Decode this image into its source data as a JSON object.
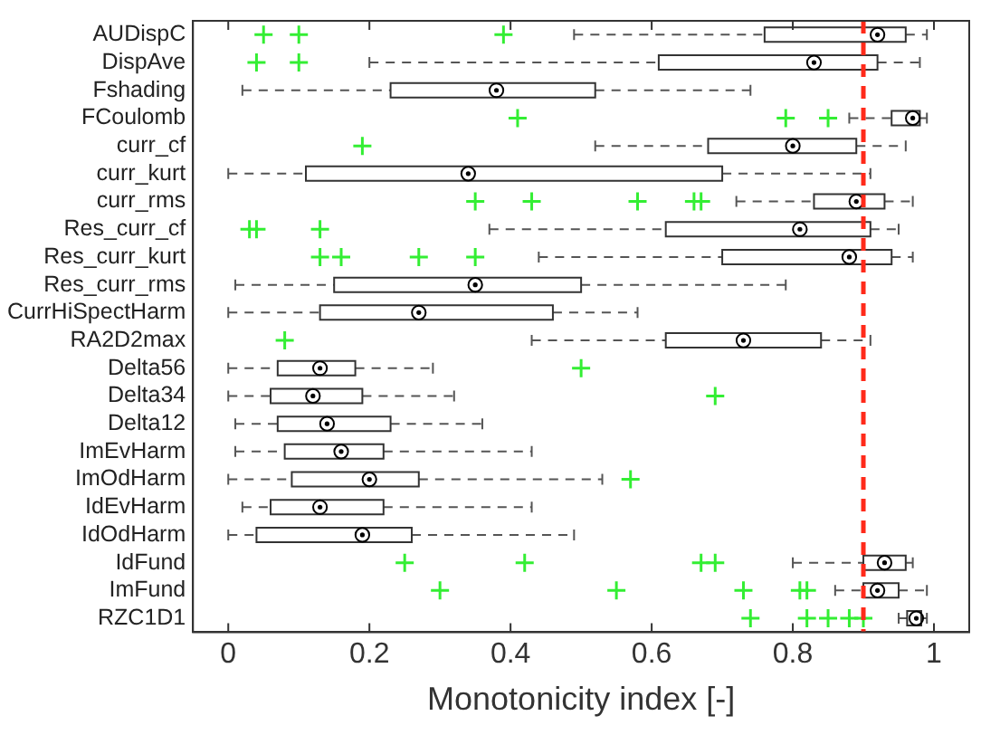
{
  "chart_data": {
    "type": "box",
    "orientation": "horizontal",
    "xlabel": "Monotonicity index [-]",
    "categories": [
      "AUDispC",
      "DispAve",
      "Fshading",
      "FCoulomb",
      "curr_cf",
      "curr_kurt",
      "curr_rms",
      "Res_curr_cf",
      "Res_curr_kurt",
      "Res_curr_rms",
      "CurrHiSpectHarm",
      "RA2D2max",
      "Delta56",
      "Delta34",
      "Delta12",
      "ImEvHarm",
      "ImOdHarm",
      "IdEvHarm",
      "IdOdHarm",
      "IdFund",
      "ImFund",
      "RZC1D1"
    ],
    "boxes": [
      {
        "low": 0.49,
        "q1": 0.76,
        "median": 0.92,
        "q3": 0.96,
        "high": 0.99,
        "outliers": [
          0.05,
          0.1,
          0.39
        ]
      },
      {
        "low": 0.2,
        "q1": 0.61,
        "median": 0.83,
        "q3": 0.92,
        "high": 0.98,
        "outliers": [
          0.04,
          0.1
        ]
      },
      {
        "low": 0.02,
        "q1": 0.23,
        "median": 0.38,
        "q3": 0.52,
        "high": 0.74
      },
      {
        "low": 0.88,
        "q1": 0.94,
        "median": 0.97,
        "q3": 0.98,
        "high": 0.99,
        "outliers": [
          0.41,
          0.79,
          0.85
        ]
      },
      {
        "low": 0.52,
        "q1": 0.68,
        "median": 0.8,
        "q3": 0.89,
        "high": 0.96,
        "outliers": [
          0.19
        ]
      },
      {
        "low": 0.0,
        "q1": 0.11,
        "median": 0.34,
        "q3": 0.7,
        "high": 0.91
      },
      {
        "low": 0.72,
        "q1": 0.83,
        "median": 0.89,
        "q3": 0.93,
        "high": 0.97,
        "outliers": [
          0.35,
          0.43,
          0.58,
          0.66,
          0.67
        ]
      },
      {
        "low": 0.37,
        "q1": 0.62,
        "median": 0.81,
        "q3": 0.91,
        "high": 0.95,
        "outliers": [
          0.03,
          0.04,
          0.13
        ]
      },
      {
        "low": 0.44,
        "q1": 0.7,
        "median": 0.88,
        "q3": 0.94,
        "high": 0.97,
        "outliers": [
          0.13,
          0.16,
          0.27,
          0.35
        ]
      },
      {
        "low": 0.01,
        "q1": 0.15,
        "median": 0.35,
        "q3": 0.5,
        "high": 0.79
      },
      {
        "low": 0.0,
        "q1": 0.13,
        "median": 0.27,
        "q3": 0.46,
        "high": 0.58
      },
      {
        "low": 0.43,
        "q1": 0.62,
        "median": 0.73,
        "q3": 0.84,
        "high": 0.91,
        "outliers": [
          0.08
        ]
      },
      {
        "low": 0.0,
        "q1": 0.07,
        "median": 0.13,
        "q3": 0.18,
        "high": 0.29,
        "outliers": [
          0.5
        ]
      },
      {
        "low": 0.0,
        "q1": 0.06,
        "median": 0.12,
        "q3": 0.19,
        "high": 0.32,
        "outliers": [
          0.69
        ]
      },
      {
        "low": 0.01,
        "q1": 0.07,
        "median": 0.14,
        "q3": 0.23,
        "high": 0.36
      },
      {
        "low": 0.01,
        "q1": 0.08,
        "median": 0.16,
        "q3": 0.22,
        "high": 0.43
      },
      {
        "low": 0.0,
        "q1": 0.09,
        "median": 0.2,
        "q3": 0.27,
        "high": 0.53,
        "outliers": [
          0.57
        ]
      },
      {
        "low": 0.02,
        "q1": 0.06,
        "median": 0.13,
        "q3": 0.22,
        "high": 0.43
      },
      {
        "low": 0.0,
        "q1": 0.04,
        "median": 0.19,
        "q3": 0.26,
        "high": 0.49
      },
      {
        "low": 0.8,
        "q1": 0.9,
        "median": 0.93,
        "q3": 0.96,
        "high": 0.97,
        "outliers": [
          0.25,
          0.42,
          0.67,
          0.69
        ]
      },
      {
        "low": 0.86,
        "q1": 0.9,
        "median": 0.92,
        "q3": 0.95,
        "high": 0.99,
        "outliers": [
          0.3,
          0.55,
          0.73,
          0.81,
          0.82
        ]
      },
      {
        "low": 0.95,
        "q1": 0.962,
        "median": 0.975,
        "q3": 0.982,
        "high": 0.99,
        "outliers": [
          0.74,
          0.82,
          0.85,
          0.88,
          0.9
        ]
      }
    ],
    "color": "#ffffff",
    "xlim": [
      -0.05,
      1.05
    ],
    "xticks": [
      0,
      0.2,
      0.4,
      0.6,
      0.8,
      1
    ],
    "ref_lines": [
      {
        "axis": "x",
        "value": 0.9,
        "color": "#ff2a1a",
        "line_style": "dashed"
      }
    ],
    "grid": false,
    "legend": false
  }
}
